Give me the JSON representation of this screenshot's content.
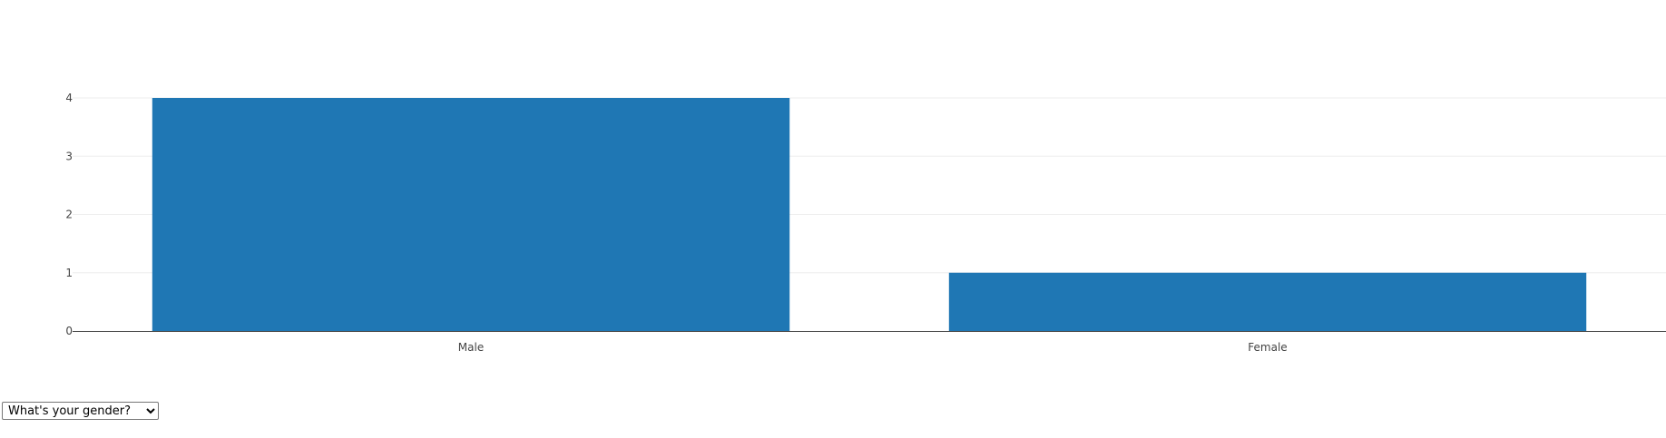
{
  "chart_data": {
    "type": "bar",
    "categories": [
      "Male",
      "Female"
    ],
    "values": [
      4,
      1
    ],
    "ylim": [
      0,
      4
    ],
    "yticks": [
      "0",
      "1",
      "2",
      "3",
      "4"
    ],
    "grid": true,
    "bar_color": "#1f77b4",
    "title": "",
    "xlabel": "",
    "ylabel": ""
  },
  "controls": {
    "question_select": {
      "selected": "What's your gender?",
      "options": [
        "What's your gender?"
      ]
    }
  }
}
